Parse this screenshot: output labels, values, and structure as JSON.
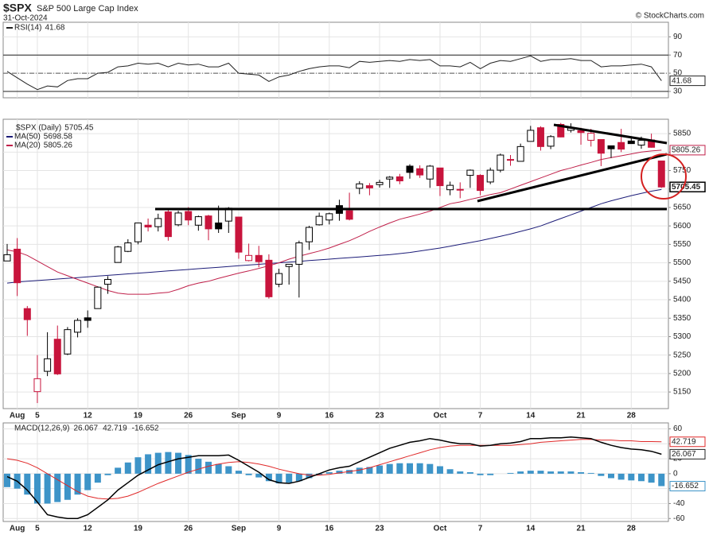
{
  "header": {
    "title": "$SPX",
    "subtitle": "S&P 500 Large Cap Index",
    "date": "31-Oct-2024",
    "source": "© StockCharts.com"
  },
  "chart_data": [
    {
      "type": "line",
      "series": [
        {
          "name": "RSI(14)",
          "color": "#222222",
          "values": [
            52,
            45,
            38,
            32,
            36,
            35,
            42,
            44,
            44,
            50,
            51,
            57,
            58,
            61,
            60,
            61,
            57,
            61,
            59,
            60,
            57,
            57,
            61,
            50,
            49,
            48,
            41,
            46,
            48,
            52,
            55,
            57,
            58,
            58,
            56,
            63,
            62,
            63,
            64,
            63,
            65,
            64,
            65,
            58,
            58,
            57,
            62,
            55,
            61,
            64,
            63,
            66,
            69,
            63,
            65,
            65,
            66,
            64,
            64,
            57,
            58,
            58,
            59,
            60,
            57,
            41.68
          ]
        }
      ],
      "ylim": [
        23,
        106
      ],
      "yticks": [
        30,
        50,
        70,
        90
      ],
      "overbought": 70,
      "oversold": 30,
      "midline": 50,
      "grid": true
    },
    {
      "type": "candlestick",
      "name": "$SPX (Daily)",
      "categories": [
        null,
        "Aug",
        null,
        "5",
        null,
        null,
        null,
        null,
        "12",
        null,
        null,
        null,
        null,
        "19",
        null,
        null,
        null,
        null,
        "26",
        null,
        null,
        null,
        null,
        "Sep",
        null,
        null,
        null,
        "9",
        null,
        null,
        null,
        null,
        "16",
        null,
        null,
        null,
        null,
        "23",
        null,
        null,
        null,
        null,
        null,
        "Oct",
        null,
        null,
        null,
        "7",
        null,
        null,
        null,
        null,
        "14",
        null,
        null,
        null,
        null,
        "21",
        null,
        null,
        null,
        null,
        "28",
        null,
        null,
        null
      ],
      "open": [
        5505,
        5537,
        5376,
        5151,
        5206,
        5293,
        5253,
        5312,
        5351,
        5376,
        5442,
        5501,
        5531,
        5557,
        5602,
        5598,
        5638,
        5603,
        5639,
        5602,
        5627,
        5608,
        5613,
        5624,
        5506,
        5520,
        5507,
        5442,
        5490,
        5496,
        5557,
        5603,
        5616,
        5655,
        5641,
        5702,
        5709,
        5712,
        5727,
        5733,
        5762,
        5755,
        5727,
        5757,
        5698,
        5698,
        5737,
        5737,
        5719,
        5751,
        5778,
        5775,
        5829,
        5866,
        5816,
        5875,
        5859,
        5858,
        5832,
        5834,
        5817,
        5826,
        5830,
        5819,
        5833,
        5776
      ],
      "high": [
        5551,
        5567,
        5383,
        5250,
        5312,
        5330,
        5326,
        5350,
        5371,
        5436,
        5464,
        5546,
        5564,
        5608,
        5620,
        5633,
        5643,
        5641,
        5651,
        5628,
        5630,
        5655,
        5651,
        5624,
        5552,
        5546,
        5523,
        5484,
        5497,
        5560,
        5600,
        5636,
        5636,
        5671,
        5690,
        5721,
        5716,
        5725,
        5735,
        5741,
        5767,
        5764,
        5765,
        5757,
        5720,
        5718,
        5753,
        5740,
        5758,
        5796,
        5792,
        5823,
        5871,
        5870,
        5846,
        5879,
        5878,
        5866,
        5863,
        5834,
        5817,
        5863,
        5843,
        5842,
        5850,
        5776
      ],
      "low": [
        5505,
        5410,
        5302,
        5120,
        5193,
        5196,
        5250,
        5298,
        5324,
        5376,
        5416,
        5501,
        5529,
        5550,
        5585,
        5585,
        5560,
        5599,
        5602,
        5587,
        5561,
        5581,
        5581,
        5511,
        5504,
        5488,
        5403,
        5434,
        5441,
        5406,
        5535,
        5601,
        5604,
        5614,
        5615,
        5686,
        5683,
        5704,
        5703,
        5713,
        5728,
        5730,
        5703,
        5681,
        5683,
        5675,
        5703,
        5683,
        5713,
        5745,
        5763,
        5775,
        5829,
        5804,
        5808,
        5840,
        5853,
        5820,
        5815,
        5762,
        5784,
        5800,
        5823,
        5809,
        5812,
        5703
      ],
      "close": [
        5522,
        5446,
        5346,
        5186,
        5240,
        5199,
        5319,
        5344,
        5344,
        5434,
        5455,
        5543,
        5554,
        5608,
        5597,
        5620,
        5571,
        5635,
        5616,
        5625,
        5592,
        5592,
        5648,
        5529,
        5520,
        5503,
        5408,
        5471,
        5496,
        5554,
        5596,
        5626,
        5633,
        5634,
        5618,
        5714,
        5703,
        5718,
        5732,
        5722,
        5745,
        5738,
        5762,
        5709,
        5710,
        5699,
        5751,
        5696,
        5751,
        5792,
        5780,
        5815,
        5859,
        5815,
        5842,
        5841,
        5865,
        5853,
        5851,
        5797,
        5809,
        5808,
        5823,
        5832,
        5813,
        5705.45
      ],
      "up_color": "#000000",
      "down_color": "#c8143c",
      "series": [
        {
          "name": "MA(50)",
          "color": "#1c1c78",
          "values": [
            5445,
            5448,
            5450,
            5452,
            5454,
            5456,
            5458,
            5460,
            5462,
            5464,
            5466,
            5468,
            5470,
            5472,
            5474,
            5476,
            5478,
            5480,
            5482,
            5484,
            5486,
            5488,
            5490,
            5492,
            5494,
            5496,
            5498,
            5500,
            5502,
            5504,
            5506,
            5508,
            5510,
            5512,
            5514,
            5516,
            5518,
            5520,
            5522,
            5525,
            5528,
            5532,
            5536,
            5540,
            5545,
            5550,
            5555,
            5560,
            5566,
            5572,
            5578,
            5585,
            5592,
            5600,
            5610,
            5620,
            5630,
            5640,
            5650,
            5660,
            5668,
            5675,
            5682,
            5688,
            5694,
            5698.58
          ]
        },
        {
          "name": "MA(20)",
          "color": "#c0204a",
          "values": [
            5535,
            5530,
            5520,
            5505,
            5490,
            5475,
            5465,
            5455,
            5445,
            5435,
            5425,
            5418,
            5415,
            5415,
            5415,
            5418,
            5420,
            5428,
            5438,
            5445,
            5450,
            5458,
            5465,
            5472,
            5478,
            5485,
            5492,
            5500,
            5510,
            5518,
            5525,
            5532,
            5540,
            5550,
            5560,
            5572,
            5585,
            5597,
            5608,
            5618,
            5625,
            5632,
            5640,
            5650,
            5660,
            5665,
            5672,
            5678,
            5685,
            5690,
            5700,
            5710,
            5720,
            5730,
            5740,
            5750,
            5757,
            5765,
            5772,
            5780,
            5785,
            5790,
            5795,
            5800,
            5803,
            5805.26
          ]
        }
      ],
      "ylim": [
        5105,
        5889
      ],
      "yticks": [
        5150,
        5200,
        5250,
        5300,
        5350,
        5400,
        5450,
        5500,
        5550,
        5600,
        5650,
        5700,
        5750,
        5800,
        5850
      ],
      "grid": true
    },
    {
      "type": "macd",
      "name": "MACD(12,26,9)",
      "categories": [
        null,
        "Aug",
        null,
        "5",
        null,
        null,
        null,
        null,
        "12",
        null,
        null,
        null,
        null,
        "19",
        null,
        null,
        null,
        null,
        "26",
        null,
        null,
        null,
        null,
        "Sep",
        null,
        null,
        null,
        "9",
        null,
        null,
        null,
        null,
        "16",
        null,
        null,
        null,
        null,
        "23",
        null,
        null,
        null,
        null,
        null,
        "Oct",
        null,
        null,
        null,
        "7",
        null,
        null,
        null,
        null,
        "14",
        null,
        null,
        null,
        null,
        "21",
        null,
        null,
        null,
        null,
        "28",
        null,
        null,
        null
      ],
      "macd": {
        "color": "#000000",
        "values": [
          -4,
          -10,
          -22,
          -38,
          -55,
          -58,
          -60,
          -60,
          -55,
          -45,
          -35,
          -22,
          -12,
          -2,
          5,
          12,
          16,
          20,
          22,
          24,
          24,
          24,
          25,
          18,
          10,
          2,
          -8,
          -12,
          -13,
          -10,
          -5,
          0,
          5,
          8,
          10,
          16,
          22,
          28,
          34,
          38,
          42,
          44,
          47,
          45,
          42,
          40,
          40,
          37,
          38,
          40,
          41,
          43,
          47,
          47,
          48,
          48,
          49,
          48,
          47,
          42,
          38,
          35,
          33,
          32,
          30,
          26.067
        ]
      },
      "signal": {
        "color": "#e02828",
        "values": [
          20,
          18,
          14,
          8,
          0,
          -8,
          -16,
          -24,
          -30,
          -33,
          -34,
          -33,
          -30,
          -25,
          -19,
          -13,
          -8,
          -3,
          2,
          6,
          10,
          13,
          15,
          16,
          15,
          13,
          10,
          6,
          3,
          0,
          -2,
          -2,
          -1,
          1,
          3,
          5,
          8,
          12,
          16,
          20,
          24,
          28,
          32,
          35,
          37,
          38,
          38,
          38,
          38,
          38,
          38,
          39,
          40,
          42,
          43,
          44,
          45,
          46,
          46,
          45,
          45,
          44,
          44,
          43,
          43,
          42.719
        ]
      },
      "histogram": {
        "color": "#3d94c8",
        "values": [
          -18,
          -20,
          -28,
          -40,
          -40,
          -38,
          -35,
          -28,
          -22,
          -12,
          -2,
          8,
          15,
          22,
          26,
          28,
          29,
          28,
          25,
          20,
          16,
          13,
          10,
          4,
          -2,
          -5,
          -10,
          -13,
          -12,
          -10,
          -6,
          -2,
          2,
          4,
          5,
          8,
          9,
          11,
          13,
          14,
          14,
          14,
          13,
          10,
          6,
          3,
          2,
          -2,
          -2,
          0,
          1,
          3,
          4,
          4,
          3,
          3,
          3,
          2,
          1,
          -3,
          -6,
          -8,
          -9,
          -10,
          -12,
          -16.652
        ]
      },
      "ylim": [
        -64,
        68
      ],
      "yticks": [
        -60,
        -40,
        -20,
        0,
        20,
        40,
        60
      ],
      "grid": true
    }
  ]
}
